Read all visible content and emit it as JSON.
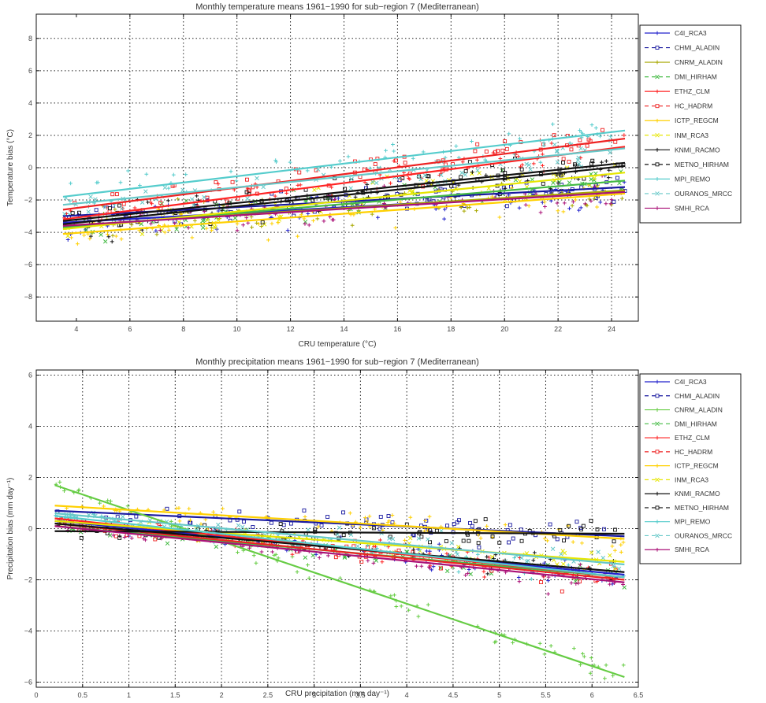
{
  "chart_data": [
    {
      "type": "scatter",
      "title": "Monthly temperature means 1961−1990 for sub−region 7 (Mediterranean)",
      "xlabel": "CRU temperature (°C)",
      "ylabel": "Temperature bias (°C)",
      "xlim": [
        2.5,
        25
      ],
      "ylim": [
        -9.5,
        9.5
      ],
      "xticks": [
        4,
        6,
        8,
        10,
        12,
        14,
        16,
        18,
        20,
        22,
        24
      ],
      "xtick_labels": [
        "4",
        "6",
        "8",
        "10",
        "12",
        "14",
        "16",
        "18",
        "20",
        "22",
        "24"
      ],
      "yticks": [
        -8,
        -6,
        -4,
        -2,
        0,
        2,
        4,
        6,
        8
      ],
      "ytick_labels": [
        "−8",
        "−6",
        "−4",
        "−2",
        "0",
        "2",
        "4",
        "6",
        "8"
      ],
      "grid": true,
      "legend_position": "outside-right",
      "x_range": [
        3.5,
        24.5
      ],
      "series": [
        {
          "name": "C4I_RCA3",
          "color": "#2222cc",
          "marker": "plus",
          "dash": "solid",
          "fit": [
            -3.4,
            -1.5
          ]
        },
        {
          "name": "CHMI_ALADIN",
          "color": "#1a1aa0",
          "marker": "square",
          "dash": "dash",
          "fit": [
            -3.0,
            -1.2
          ]
        },
        {
          "name": "CNRM_ALADIN",
          "color": "#a8a800",
          "marker": "plus",
          "dash": "solid",
          "fit": [
            -3.6,
            -1.4
          ]
        },
        {
          "name": "DMI_HIRHAM",
          "color": "#44bb44",
          "marker": "x",
          "dash": "dash",
          "fit": [
            -3.7,
            -0.8
          ]
        },
        {
          "name": "ETHZ_CLM",
          "color": "#ff2222",
          "marker": "plus",
          "dash": "solid",
          "fit": [
            -3.2,
            1.3
          ]
        },
        {
          "name": "HC_HADRM",
          "color": "#ee2222",
          "marker": "square",
          "dash": "dash",
          "fit": [
            -2.6,
            1.8
          ]
        },
        {
          "name": "ICTP_REGCM",
          "color": "#ffd000",
          "marker": "plus",
          "dash": "solid",
          "fit": [
            -4.1,
            -1.6
          ]
        },
        {
          "name": "INM_RCA3",
          "color": "#e6e600",
          "marker": "x",
          "dash": "dash",
          "fit": [
            -3.8,
            -0.3
          ]
        },
        {
          "name": "KNMI_RACMO",
          "color": "#111111",
          "marker": "plus",
          "dash": "solid",
          "fit": [
            -3.5,
            0.1
          ]
        },
        {
          "name": "METNO_HIRHAM",
          "color": "#111111",
          "marker": "square",
          "dash": "dash",
          "fit": [
            -3.3,
            0.3
          ]
        },
        {
          "name": "MPI_REMO",
          "color": "#55cccc",
          "marker": "plus",
          "dash": "solid",
          "fit": [
            -1.8,
            2.3
          ]
        },
        {
          "name": "OURANOS_MRCC",
          "color": "#66c8c8",
          "marker": "x",
          "dash": "dash",
          "fit": [
            -2.3,
            1.2
          ]
        },
        {
          "name": "SMHI_RCA",
          "color": "#aa1177",
          "marker": "plus",
          "dash": "solid",
          "fit": [
            -3.6,
            -1.5
          ]
        }
      ]
    },
    {
      "type": "scatter",
      "title": "Monthly precipitation means 1961−1990 for sub−region 7 (Mediterranean)",
      "xlabel": "CRU precipitation (mm day⁻¹)",
      "ylabel": "Precipitation bias (mm day⁻¹)",
      "xlim": [
        0,
        6.5
      ],
      "ylim": [
        -6.2,
        6.2
      ],
      "xticks": [
        0,
        0.5,
        1,
        1.5,
        2,
        2.5,
        3,
        3.5,
        4,
        4.5,
        5,
        5.5,
        6,
        6.5
      ],
      "xtick_labels": [
        "0",
        "0.5",
        "1",
        "1.5",
        "2",
        "2.5",
        "3",
        "3.5",
        "4",
        "4.5",
        "5",
        "5.5",
        "6",
        "6.5"
      ],
      "yticks": [
        -6,
        -4,
        -2,
        0,
        2,
        4,
        6
      ],
      "ytick_labels": [
        "−6",
        "−4",
        "−2",
        "0",
        "2",
        "4",
        "6"
      ],
      "grid": true,
      "legend_position": "outside-right",
      "x_range": [
        0.2,
        6.35
      ],
      "series": [
        {
          "name": "C4I_RCA3",
          "color": "#2222cc",
          "marker": "plus",
          "dash": "solid",
          "fit": [
            0.3,
            -1.8
          ]
        },
        {
          "name": "CHMI_ALADIN",
          "color": "#1a1aa0",
          "marker": "square",
          "dash": "dash",
          "fit": [
            0.7,
            -0.3
          ]
        },
        {
          "name": "CNRM_ALADIN",
          "color": "#66cc44",
          "marker": "plus",
          "dash": "solid",
          "fit": [
            1.7,
            -5.8
          ]
        },
        {
          "name": "DMI_HIRHAM",
          "color": "#44bb44",
          "marker": "x",
          "dash": "dash",
          "fit": [
            0.1,
            -1.9
          ]
        },
        {
          "name": "ETHZ_CLM",
          "color": "#ff2222",
          "marker": "plus",
          "dash": "solid",
          "fit": [
            0.4,
            -1.9
          ]
        },
        {
          "name": "HC_HADRM",
          "color": "#ee2222",
          "marker": "square",
          "dash": "dash",
          "fit": [
            0.2,
            -2.0
          ]
        },
        {
          "name": "ICTP_REGCM",
          "color": "#ffd000",
          "marker": "plus",
          "dash": "solid",
          "fit": [
            0.9,
            -0.4
          ]
        },
        {
          "name": "INM_RCA3",
          "color": "#e6e600",
          "marker": "x",
          "dash": "dash",
          "fit": [
            0.3,
            -1.3
          ]
        },
        {
          "name": "KNMI_RACMO",
          "color": "#111111",
          "marker": "plus",
          "dash": "solid",
          "fit": [
            0.2,
            -1.7
          ]
        },
        {
          "name": "METNO_HIRHAM",
          "color": "#111111",
          "marker": "square",
          "dash": "dash",
          "fit": [
            -0.1,
            -0.2
          ]
        },
        {
          "name": "MPI_REMO",
          "color": "#55cccc",
          "marker": "plus",
          "dash": "solid",
          "fit": [
            0.5,
            -1.9
          ]
        },
        {
          "name": "OURANOS_MRCC",
          "color": "#66c8c8",
          "marker": "x",
          "dash": "dash",
          "fit": [
            0.6,
            -1.4
          ]
        },
        {
          "name": "SMHI_RCA",
          "color": "#aa1177",
          "marker": "plus",
          "dash": "solid",
          "fit": [
            0.1,
            -2.1
          ]
        }
      ]
    }
  ]
}
